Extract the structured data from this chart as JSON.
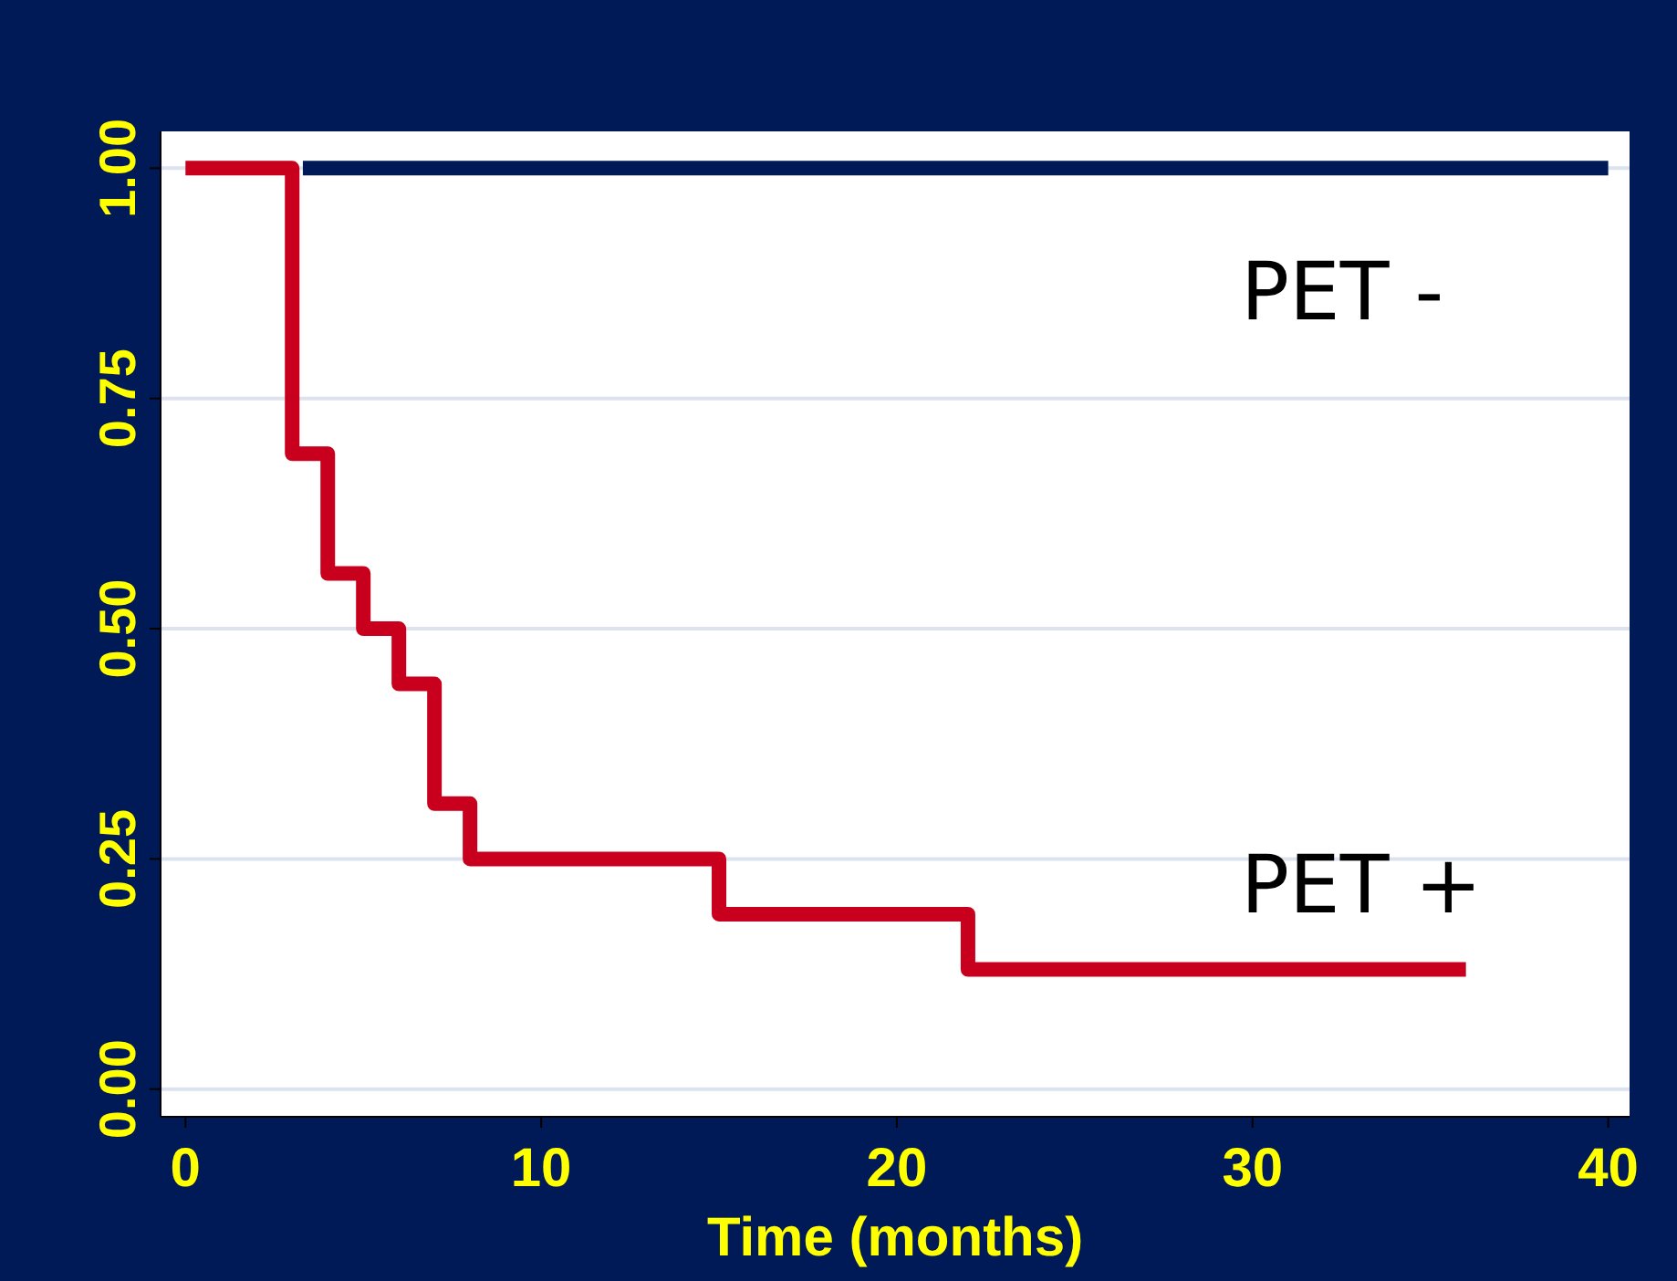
{
  "chart_data": {
    "type": "step",
    "xlabel": "Time (months)",
    "xlim": [
      -0.7,
      40.6
    ],
    "xticks": [
      0,
      10,
      20,
      30,
      40
    ],
    "ylim": [
      -0.03,
      1.04
    ],
    "yticks": [
      {
        "value": 0,
        "label": "0.00"
      },
      {
        "value": 0.25,
        "label": "0.25"
      },
      {
        "value": 0.5,
        "label": "0.50"
      },
      {
        "value": 0.75,
        "label": "0.75"
      },
      {
        "value": 1,
        "label": "1.00"
      }
    ],
    "grid": "y",
    "marker": "none",
    "line_style": "solid",
    "series": [
      {
        "name": "PET -",
        "color": "#001a57",
        "x": [
          3.3,
          40
        ],
        "values": [
          1,
          1
        ]
      },
      {
        "name": "PET +",
        "color": "#c8001e",
        "x": [
          0,
          3,
          4,
          5,
          6,
          7,
          8,
          15,
          22,
          36
        ],
        "values": [
          1,
          0.69,
          0.56,
          0.5,
          0.44,
          0.31,
          0.25,
          0.19,
          0.13,
          0.13
        ]
      }
    ]
  }
}
